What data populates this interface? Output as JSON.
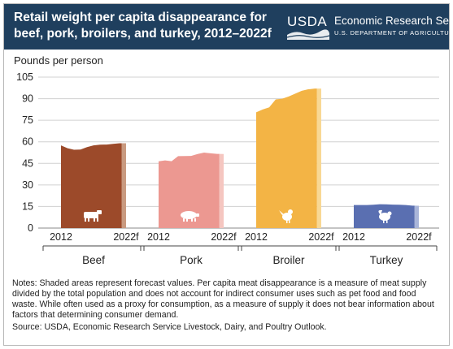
{
  "header": {
    "title_line1": "Retail weight per capita disappearance for",
    "title_line2": "beef, pork, broilers, and turkey, 2012–2022f",
    "logo_text": "USDA",
    "agency_name": "Economic Research Service",
    "department": "U.S. DEPARTMENT OF AGRICULTURE"
  },
  "colors": {
    "header_bg": "#1f3f5e",
    "beef": "#9c4a2a",
    "beef_forecast": "#c99a80",
    "pork": "#ec9891",
    "pork_forecast": "#f5c6c0",
    "broiler": "#f3b445",
    "broiler_forecast": "#f8d894",
    "turkey": "#5a6fb1",
    "turkey_forecast": "#a9b5d9"
  },
  "chart_data": {
    "type": "area",
    "ylabel": "Pounds per person",
    "ylim": [
      0,
      105
    ],
    "yticks": [
      0,
      15,
      30,
      45,
      60,
      75,
      90,
      105
    ],
    "grid": true,
    "x": [
      2012,
      2013,
      2014,
      2015,
      2016,
      2017,
      2018,
      2019,
      2020,
      2021,
      2022
    ],
    "x_tick_labels": [
      "2012",
      "2022f"
    ],
    "forecast_years": [
      2022
    ],
    "series": [
      {
        "name": "Beef",
        "icon": "cow-icon",
        "values": [
          57.5,
          55.5,
          54.5,
          54.6,
          56.3,
          57.5,
          58.0,
          58.1,
          58.6,
          59.0,
          59.0
        ]
      },
      {
        "name": "Pork",
        "icon": "pig-icon",
        "values": [
          46.4,
          47.1,
          46.5,
          50.0,
          50.1,
          50.2,
          51.5,
          52.5,
          52.0,
          51.6,
          51.5
        ]
      },
      {
        "name": "Broiler",
        "icon": "chicken-icon",
        "values": [
          80.5,
          82.5,
          84.0,
          89.5,
          90.0,
          91.5,
          93.5,
          95.5,
          96.5,
          97.0,
          97.0
        ]
      },
      {
        "name": "Turkey",
        "icon": "turkey-icon",
        "values": [
          16.0,
          16.0,
          16.0,
          16.2,
          16.6,
          16.5,
          16.3,
          16.2,
          16.0,
          15.6,
          15.5
        ]
      }
    ]
  },
  "notes": {
    "text": "Notes: Shaded areas represent forecast values. Per capita meat disappearance is a measure of meat supply divided by the total population and does not account for indirect consumer uses such as pet food and food waste. While often used as a proxy for consumption, as a measure of supply it does not bear information about factors that determining consumer demand.",
    "source": "Source: USDA, Economic Research Service Livestock, Dairy, and Poultry Outlook."
  }
}
